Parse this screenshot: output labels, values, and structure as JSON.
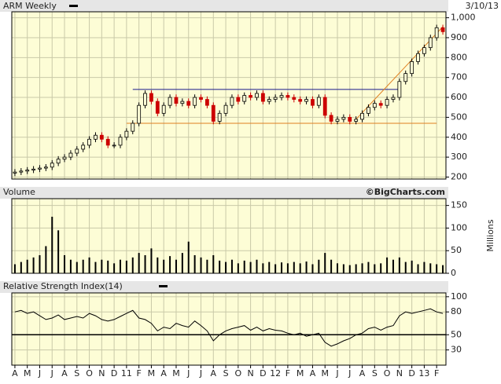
{
  "chart_data": [
    {
      "type": "candlestick",
      "title": "ARM Weekly",
      "date": "3/10/13",
      "ylim": [
        190,
        1030
      ],
      "yticks": [
        200,
        300,
        400,
        500,
        600,
        700,
        800,
        900,
        {
          "value": 1000,
          "label": "1,000"
        }
      ],
      "up_color": "#000000",
      "down_color": "#cc0000",
      "grid": true,
      "open": [
        220,
        225,
        230,
        235,
        240,
        245,
        250,
        270,
        290,
        300,
        320,
        340,
        360,
        390,
        410,
        390,
        360,
        360,
        400,
        430,
        470,
        560,
        620,
        580,
        520,
        560,
        600,
        570,
        580,
        560,
        600,
        590,
        560,
        480,
        520,
        560,
        600,
        580,
        610,
        600,
        620,
        580,
        590,
        600,
        610,
        600,
        590,
        580,
        590,
        560,
        600,
        510,
        480,
        490,
        500,
        480,
        490,
        520,
        550,
        570,
        560,
        590,
        600,
        680,
        720,
        780,
        820,
        850,
        900,
        950
      ],
      "high": [
        240,
        245,
        250,
        255,
        260,
        265,
        285,
        305,
        315,
        335,
        355,
        375,
        405,
        425,
        425,
        405,
        375,
        415,
        445,
        485,
        575,
        635,
        635,
        595,
        575,
        615,
        615,
        595,
        595,
        615,
        615,
        605,
        575,
        535,
        575,
        615,
        615,
        625,
        625,
        635,
        635,
        605,
        615,
        625,
        625,
        615,
        605,
        605,
        605,
        615,
        615,
        525,
        505,
        515,
        515,
        505,
        535,
        565,
        585,
        585,
        605,
        615,
        695,
        735,
        795,
        835,
        865,
        915,
        965,
        965
      ],
      "low": [
        205,
        210,
        215,
        220,
        225,
        230,
        235,
        255,
        275,
        285,
        305,
        325,
        345,
        375,
        375,
        345,
        345,
        345,
        385,
        415,
        455,
        545,
        565,
        505,
        505,
        545,
        555,
        555,
        545,
        545,
        575,
        545,
        465,
        465,
        505,
        545,
        565,
        565,
        585,
        585,
        565,
        565,
        575,
        585,
        585,
        575,
        565,
        565,
        545,
        545,
        495,
        465,
        465,
        475,
        465,
        465,
        475,
        505,
        535,
        545,
        545,
        575,
        585,
        665,
        705,
        765,
        805,
        835,
        885,
        915
      ],
      "close": [
        225,
        230,
        235,
        240,
        245,
        250,
        270,
        290,
        300,
        320,
        340,
        360,
        390,
        410,
        390,
        360,
        360,
        400,
        430,
        470,
        560,
        620,
        580,
        520,
        560,
        600,
        570,
        580,
        560,
        600,
        590,
        560,
        480,
        520,
        560,
        600,
        580,
        610,
        600,
        620,
        580,
        590,
        600,
        610,
        600,
        590,
        580,
        590,
        560,
        600,
        510,
        480,
        490,
        500,
        480,
        490,
        520,
        550,
        570,
        560,
        590,
        600,
        680,
        720,
        780,
        820,
        850,
        900,
        950,
        930
      ],
      "ref_lines": [
        {
          "y": 640,
          "x": [
            19,
            62
          ],
          "color": "#1a1a8c"
        },
        {
          "y": 470,
          "x": [
            18,
            68
          ],
          "color": "#e08020"
        },
        {
          "y": [
            490,
            955
          ],
          "x": [
            55,
            69
          ],
          "color": "#e08020"
        }
      ]
    },
    {
      "type": "bar",
      "title": "Volume",
      "source": "©BigCharts.com",
      "y_label": "Millions",
      "ylim": [
        0,
        165
      ],
      "yticks": [
        0,
        50,
        100,
        150
      ],
      "color": "#000000",
      "grid": true,
      "values": [
        20,
        25,
        30,
        35,
        40,
        60,
        125,
        95,
        40,
        30,
        25,
        30,
        35,
        25,
        30,
        28,
        22,
        30,
        28,
        35,
        45,
        40,
        55,
        35,
        30,
        38,
        30,
        45,
        70,
        40,
        35,
        30,
        40,
        28,
        25,
        30,
        22,
        28,
        25,
        30,
        22,
        25,
        20,
        24,
        22,
        25,
        22,
        26,
        20,
        30,
        45,
        30,
        22,
        20,
        18,
        20,
        22,
        25,
        20,
        22,
        35,
        30,
        35,
        25,
        28,
        20,
        25,
        22,
        20,
        18
      ]
    },
    {
      "type": "line",
      "title": "Relative Strength Index(14)",
      "ylim": [
        10,
        105
      ],
      "yticks": [
        30,
        50,
        80,
        100
      ],
      "ref_line": 50,
      "color": "#000000",
      "grid": true,
      "categories": [
        "A",
        null,
        "M",
        null,
        "J",
        null,
        "J",
        null,
        "A",
        null,
        "S",
        null,
        "O",
        null,
        "N",
        null,
        "D",
        null,
        "11",
        null,
        "F",
        null,
        "M",
        null,
        "A",
        null,
        "M",
        null,
        "J",
        null,
        "J",
        null,
        "A",
        null,
        "S",
        null,
        "O",
        null,
        "N",
        null,
        "D",
        null,
        "12",
        null,
        "F",
        null,
        "M",
        null,
        "A",
        null,
        "M",
        null,
        "J",
        null,
        "J",
        null,
        "A",
        null,
        "S",
        null,
        "O",
        null,
        "N",
        null,
        "D",
        null,
        "13",
        null,
        "F",
        null
      ],
      "values": [
        80,
        82,
        78,
        80,
        75,
        70,
        72,
        76,
        70,
        72,
        74,
        72,
        78,
        75,
        70,
        68,
        70,
        74,
        78,
        82,
        72,
        70,
        65,
        55,
        60,
        58,
        65,
        62,
        60,
        68,
        62,
        55,
        42,
        50,
        55,
        58,
        60,
        62,
        56,
        60,
        55,
        58,
        56,
        55,
        52,
        50,
        52,
        48,
        50,
        52,
        40,
        35,
        38,
        42,
        45,
        50,
        52,
        58,
        60,
        56,
        60,
        62,
        75,
        80,
        78,
        80,
        82,
        84,
        80,
        78
      ]
    }
  ]
}
